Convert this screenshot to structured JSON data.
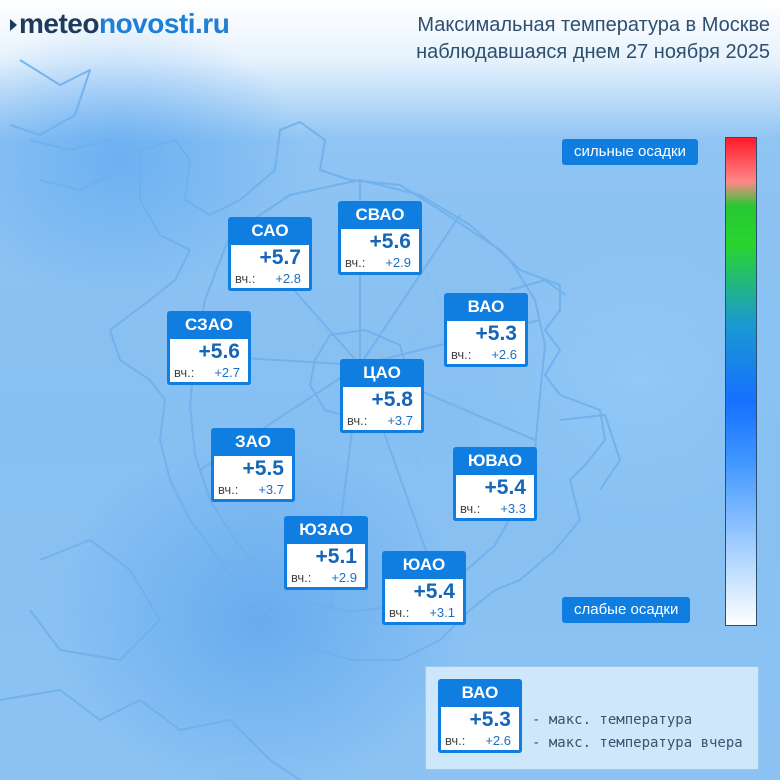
{
  "logo": {
    "part1": "meteo",
    "part2": "novosti.ru"
  },
  "title": {
    "line1": "Максимальная температура в Москве",
    "line2": "наблюдавшаяся днем 27 ноября 2025"
  },
  "yesterday_label": "вч.:",
  "districts": [
    {
      "name": "САО",
      "value": "+5.7",
      "yesterday": "+2.8"
    },
    {
      "name": "СВАО",
      "value": "+5.6",
      "yesterday": "+2.9"
    },
    {
      "name": "ВАО",
      "value": "+5.3",
      "yesterday": "+2.6"
    },
    {
      "name": "СЗАО",
      "value": "+5.6",
      "yesterday": "+2.7"
    },
    {
      "name": "ЦАО",
      "value": "+5.8",
      "yesterday": "+3.7"
    },
    {
      "name": "ЗАО",
      "value": "+5.5",
      "yesterday": "+3.7"
    },
    {
      "name": "ЮВАО",
      "value": "+5.4",
      "yesterday": "+3.3"
    },
    {
      "name": "ЮЗАО",
      "value": "+5.1",
      "yesterday": "+2.9"
    },
    {
      "name": "ЮАО",
      "value": "+5.4",
      "yesterday": "+3.1"
    }
  ],
  "precip_scale": {
    "high_label": "сильные осадки",
    "low_label": "слабые осадки",
    "colors": [
      "#ff1a2a",
      "#ff8888",
      "#27c832",
      "#1670ff",
      "#ffffff"
    ]
  },
  "legend": {
    "sample": {
      "name": "ВАО",
      "value": "+5.3",
      "yesterday": "+2.6"
    },
    "max_temp_text": "- макс. температура",
    "max_temp_yesterday_text": "- макс. температура вчера"
  },
  "colors": {
    "accent": "#0f7ee0",
    "value_text": "#1565b8",
    "boundary": "#6fb0ec"
  }
}
